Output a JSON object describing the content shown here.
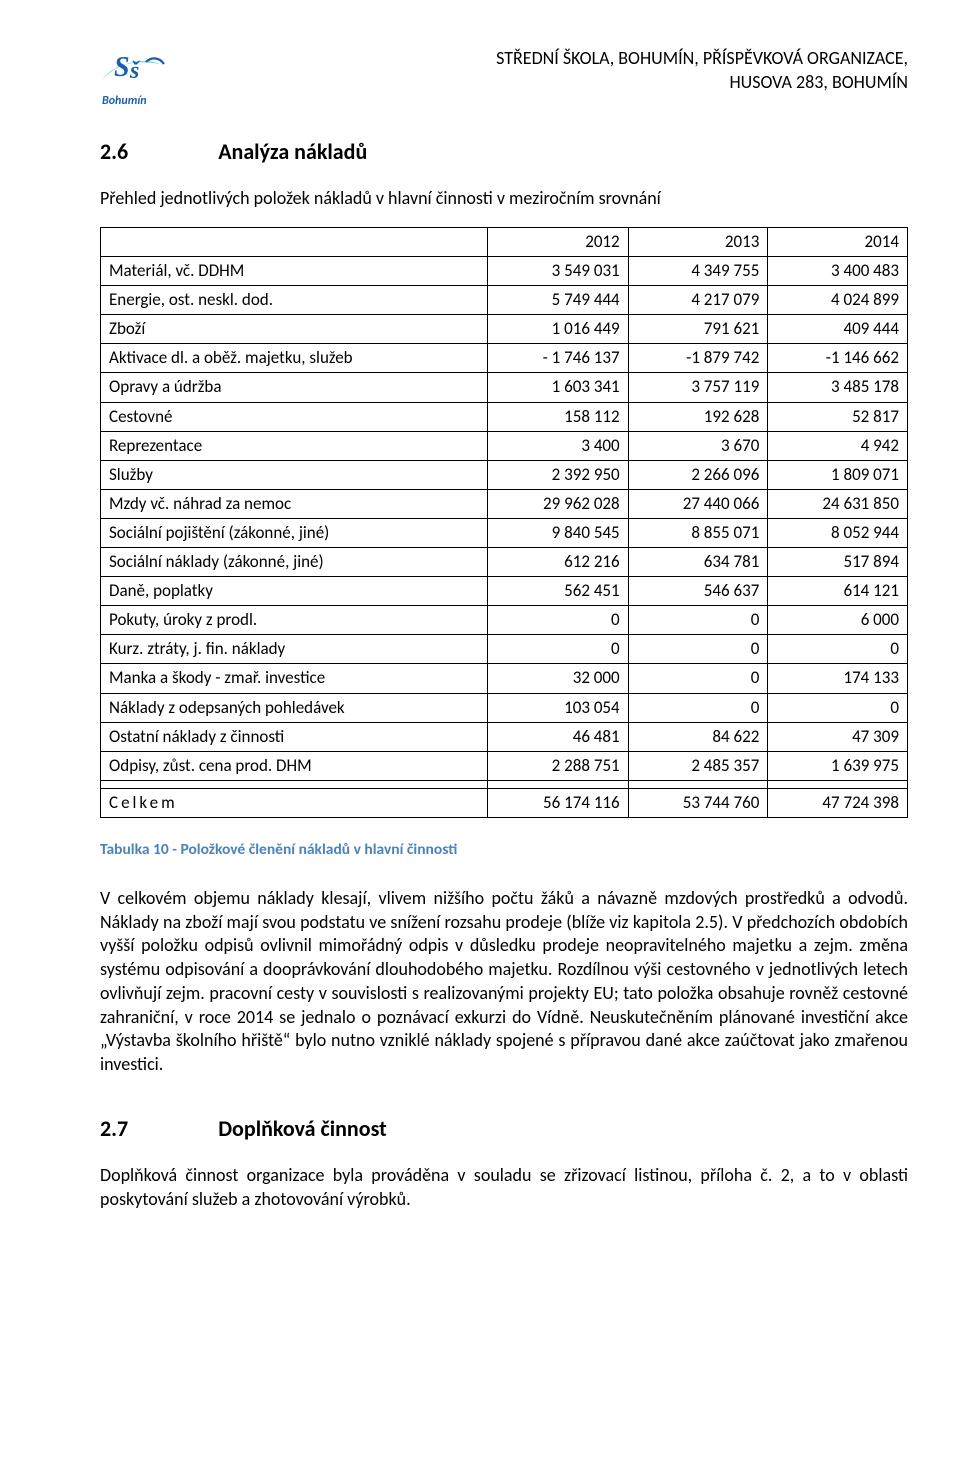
{
  "header": {
    "logo_text": "Bohumín",
    "org_line1": "STŘEDNÍ ŠKOLA, BOHUMÍN, PŘÍSPĚVKOVÁ ORGANIZACE,",
    "org_line2": "HUSOVA 283, BOHUMÍN"
  },
  "section1": {
    "number": "2.6",
    "title": "Analýza nákladů",
    "intro": "Přehled jednotlivých položek nákladů v hlavní činnosti v meziročním srovnání"
  },
  "table": {
    "years": [
      "2012",
      "2013",
      "2014"
    ],
    "rows": [
      {
        "label": "Materiál, vč. DDHM",
        "v": [
          "3 549 031",
          "4 349 755",
          "3 400 483"
        ]
      },
      {
        "label": "Energie, ost. neskl. dod.",
        "v": [
          "5 749 444",
          "4 217 079",
          "4 024 899"
        ]
      },
      {
        "label": "Zboží",
        "v": [
          "1 016 449",
          "791 621",
          "409 444"
        ]
      },
      {
        "label": "Aktivace dl. a oběž. majetku, služeb",
        "v": [
          "- 1 746 137",
          "-1 879 742",
          "-1 146 662"
        ]
      },
      {
        "label": "Opravy a údržba",
        "v": [
          "1 603 341",
          "3 757 119",
          "3 485 178"
        ]
      },
      {
        "label": "Cestovné",
        "v": [
          "158 112",
          "192 628",
          "52 817"
        ]
      },
      {
        "label": "Reprezentace",
        "v": [
          "3 400",
          "3 670",
          "4 942"
        ]
      },
      {
        "label": "Služby",
        "v": [
          "2 392 950",
          "2 266 096",
          "1 809 071"
        ]
      },
      {
        "label": "Mzdy vč. náhrad za nemoc",
        "v": [
          "29 962 028",
          "27 440 066",
          "24 631 850"
        ]
      },
      {
        "label": "Sociální pojištění (zákonné, jiné)",
        "v": [
          "9 840 545",
          "8 855 071",
          "8 052 944"
        ]
      },
      {
        "label": "Sociální náklady (zákonné, jiné)",
        "v": [
          "612 216",
          "634 781",
          "517 894"
        ]
      },
      {
        "label": "Daně, poplatky",
        "v": [
          "562 451",
          "546 637",
          "614 121"
        ]
      },
      {
        "label": "Pokuty, úroky z prodl.",
        "v": [
          "0",
          "0",
          "6 000"
        ]
      },
      {
        "label": "Kurz. ztráty, j. fin. náklady",
        "v": [
          "0",
          "0",
          "0"
        ]
      },
      {
        "label": "Manka a škody - zmař. investice",
        "v": [
          "32 000",
          "0",
          "174 133"
        ]
      },
      {
        "label": "Náklady z odepsaných pohledávek",
        "v": [
          "103 054",
          "0",
          "0"
        ]
      },
      {
        "label": "Ostatní náklady z činnosti",
        "v": [
          "46 481",
          "84 622",
          "47 309"
        ]
      },
      {
        "label": "Odpisy, zůst. cena prod. DHM",
        "v": [
          "2 288 751",
          "2 485 357",
          "1 639 975"
        ]
      }
    ],
    "total": {
      "label": "Celkem",
      "v": [
        "56 174 116",
        "53 744 760",
        "47 724 398"
      ]
    }
  },
  "caption": "Tabulka 10 - Položkové členění nákladů v hlavní činnosti",
  "body1": "V celkovém objemu náklady klesají, vlivem nižšího počtu žáků a návazně mzdových prostředků a odvodů. Náklady na zboží mají svou podstatu ve snížení rozsahu prodeje (blíže viz kapitola 2.5). V předchozích obdobích vyšší položku odpisů ovlivnil mimořádný odpis v důsledku prodeje neopravitelného majetku a zejm. změna systému odpisování a dooprávkování dlouhodobého majetku. Rozdílnou výši cestovného v jednotlivých letech ovlivňují zejm. pracovní cesty v souvislosti s realizovanými projekty EU; tato položka obsahuje rovněž cestovné zahraniční, v roce 2014 se jednalo o poznávací exkurzi do Vídně. Neuskutečněním plánované investiční akce „Výstavba školního hřiště“ bylo nutno vzniklé náklady spojené s přípravou dané akce zaúčtovat jako zmařenou investici.",
  "section2": {
    "number": "2.7",
    "title": "Doplňková činnost"
  },
  "body2": "Doplňková činnost organizace byla prováděna v souladu se zřizovací listinou, příloha č. 2, a to v oblasti poskytování služeb a zhotovování výrobků.",
  "colors": {
    "caption": "#4b82b8",
    "logo_blue": "#1861a8",
    "logo_swoosh": "#8fcfe8"
  }
}
